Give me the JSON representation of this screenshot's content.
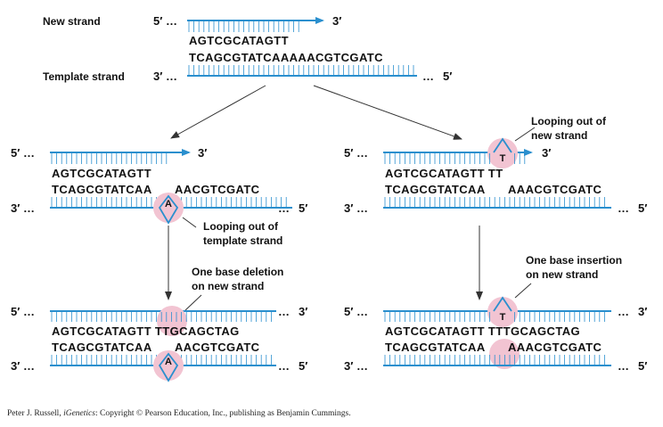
{
  "colors": {
    "strand": "#2a8fce",
    "highlight": "#f2c4d2",
    "arrow": "#333333"
  },
  "top": {
    "new_strand_label": "New strand",
    "template_strand_label": "Template strand",
    "new_5": "5′",
    "new_3": "3′",
    "tmpl_3": "3′",
    "tmpl_5": "5′",
    "seq_new": "AGTCGCATAGTT",
    "seq_template": "TCAGCGTATCAAAAACGTCGATC"
  },
  "left_middle": {
    "new_5": "5′",
    "new_3": "3′",
    "tmpl_3": "3′",
    "tmpl_5": "5′",
    "seq_new": "AGTCGCATAGTT",
    "seq_template_a": "TCAGCGTATCAA",
    "seq_template_b": "AACGTCGATC",
    "loop_base": "A",
    "annotation_line1": "Looping out of",
    "annotation_line2": "template strand"
  },
  "right_middle": {
    "new_5": "5′",
    "new_3": "3′",
    "tmpl_3": "3′",
    "tmpl_5": "5′",
    "seq_new": "AGTCGCATAGTT TT",
    "seq_template_a": "TCAGCGTATCAA",
    "seq_template_b": "AAACGTCGATC",
    "loop_base": "T",
    "annotation_line1": "Looping out of",
    "annotation_line2": "new strand"
  },
  "left_bottom": {
    "top_5": "5′",
    "top_3": "3′",
    "bot_3": "3′",
    "bot_5": "5′",
    "seq_new": "AGTCGCATAGTT TTGCAGCTAG",
    "seq_template_a": "TCAGCGTATCAA",
    "seq_template_b": "AACGTCGATC",
    "loop_base": "A",
    "annotation_line1": "One base deletion",
    "annotation_line2": "on new strand"
  },
  "right_bottom": {
    "top_5": "5′",
    "top_3": "3′",
    "bot_3": "3′",
    "bot_5": "5′",
    "seq_new": "AGTCGCATAGTT TTTGCAGCTAG",
    "seq_template_a": "TCAGCGTATCAA",
    "seq_template_b": "AAACGTCGATC",
    "loop_base": "T",
    "annotation_line1": "One base insertion",
    "annotation_line2": "on new strand"
  },
  "credit": {
    "author": "Peter J. Russell, ",
    "title": "iGenetics",
    "rest": ": Copyright © Pearson Education, Inc., publishing as Benjamin Cummings."
  }
}
